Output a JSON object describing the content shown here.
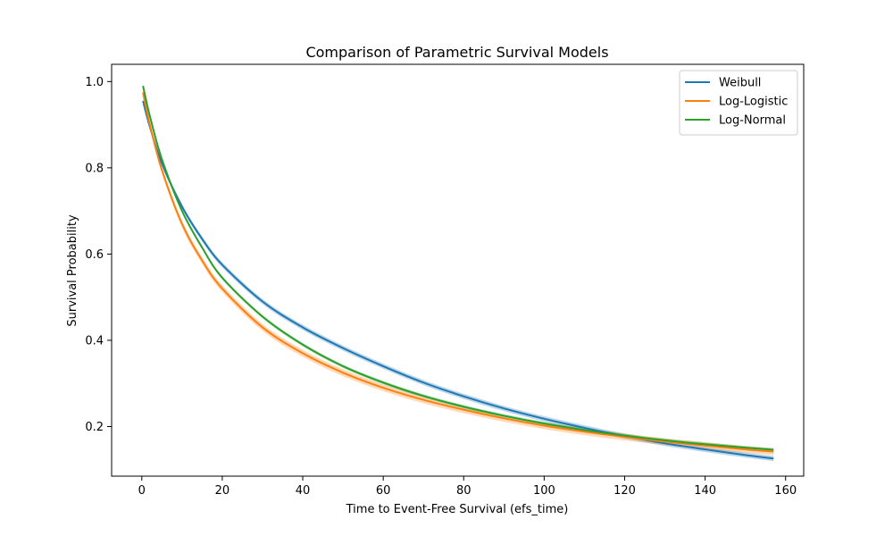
{
  "chart_data": {
    "type": "line",
    "title": "Comparison of Parametric Survival Models",
    "xlabel": "Time to Event-Free Survival (efs_time)",
    "ylabel": "Survival Probability",
    "xlim": [
      -7.5,
      164.5
    ],
    "ylim": [
      0.085,
      1.04
    ],
    "xticks": [
      0,
      20,
      40,
      60,
      80,
      100,
      120,
      140,
      160
    ],
    "yticks": [
      0.2,
      0.4,
      0.6,
      0.8,
      1.0
    ],
    "xtick_labels": [
      "0",
      "20",
      "40",
      "60",
      "80",
      "100",
      "120",
      "140",
      "160"
    ],
    "ytick_labels": [
      "0.2",
      "0.4",
      "0.6",
      "0.8",
      "1.0"
    ],
    "legend_position": "top-right",
    "grid": false,
    "confidence_bands": true,
    "series": [
      {
        "name": "Weibull",
        "color": "#1f77b4",
        "x": [
          0.3,
          2,
          5,
          10,
          15,
          20,
          30,
          40,
          50,
          60,
          70,
          80,
          90,
          100,
          110,
          120,
          130,
          140,
          150,
          157
        ],
        "y": [
          0.955,
          0.895,
          0.81,
          0.71,
          0.635,
          0.575,
          0.49,
          0.43,
          0.382,
          0.34,
          0.302,
          0.27,
          0.242,
          0.218,
          0.197,
          0.178,
          0.161,
          0.147,
          0.134,
          0.126
        ],
        "band": 0.006
      },
      {
        "name": "Log-Logistic",
        "color": "#ff7f0e",
        "x": [
          0.3,
          2,
          5,
          10,
          15,
          20,
          30,
          40,
          50,
          60,
          70,
          80,
          90,
          100,
          110,
          120,
          130,
          140,
          150,
          157
        ],
        "y": [
          0.975,
          0.9,
          0.795,
          0.67,
          0.585,
          0.52,
          0.43,
          0.37,
          0.325,
          0.29,
          0.262,
          0.239,
          0.219,
          0.202,
          0.188,
          0.176,
          0.165,
          0.156,
          0.147,
          0.142
        ],
        "band": 0.008
      },
      {
        "name": "Log-Normal",
        "color": "#2ca02c",
        "x": [
          0.3,
          2,
          5,
          10,
          15,
          20,
          30,
          40,
          50,
          60,
          70,
          80,
          90,
          100,
          110,
          120,
          130,
          140,
          150,
          157
        ],
        "y": [
          0.99,
          0.92,
          0.82,
          0.7,
          0.615,
          0.545,
          0.455,
          0.39,
          0.34,
          0.302,
          0.271,
          0.246,
          0.225,
          0.207,
          0.192,
          0.179,
          0.168,
          0.159,
          0.151,
          0.146
        ],
        "band": 0.004
      }
    ]
  }
}
